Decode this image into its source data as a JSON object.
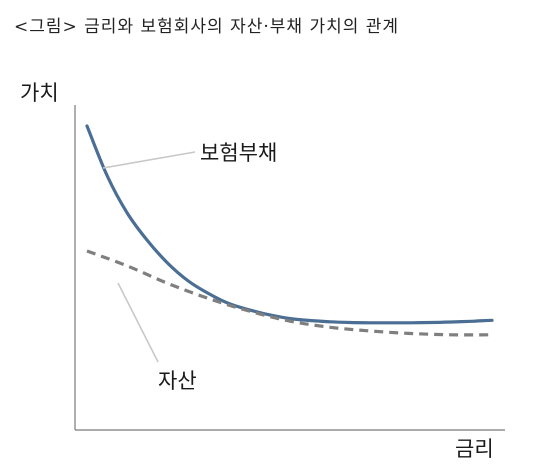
{
  "caption": "<그림> 금리와 보험회사의 자산·부채 가치의 관계",
  "chart_data": {
    "type": "line",
    "xlabel": "금리",
    "ylabel": "가치",
    "grid": false,
    "legend": "none",
    "xlim": [
      0,
      100
    ],
    "ylim": [
      0,
      100
    ],
    "series": [
      {
        "name": "보험부채",
        "style": "solid",
        "color": "#4a6e94",
        "x": [
          0,
          5,
          10,
          15,
          20,
          25,
          30,
          35,
          40,
          45,
          50,
          55,
          60,
          65,
          70,
          75,
          80,
          85,
          90,
          95,
          100
        ],
        "y": [
          100,
          80,
          65,
          54,
          45,
          38,
          33,
          29,
          26.5,
          24.5,
          23,
          22.2,
          21.7,
          21.4,
          21.3,
          21.3,
          21.3,
          21.4,
          21.6,
          21.9,
          22.3
        ]
      },
      {
        "name": "자산",
        "style": "dashed",
        "color": "#7f7f7f",
        "x": [
          0,
          10,
          20,
          30,
          40,
          50,
          60,
          70,
          80,
          90,
          100
        ],
        "y": [
          50,
          44,
          37,
          31,
          26,
          22,
          19.5,
          18,
          17,
          16.5,
          16.5
        ]
      }
    ]
  }
}
